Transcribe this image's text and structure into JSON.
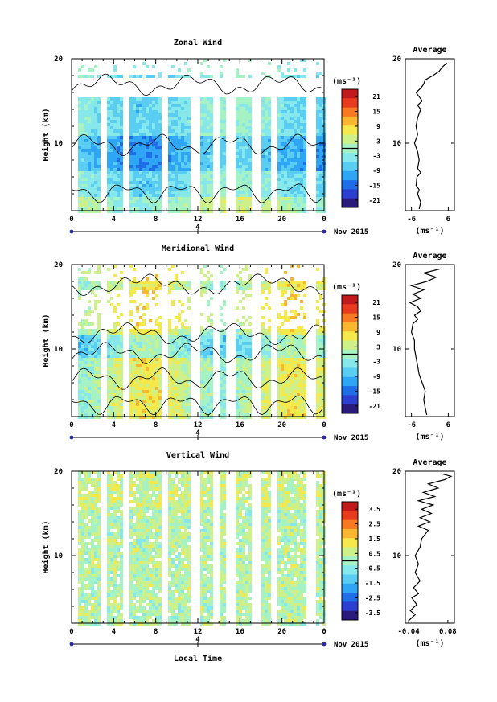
{
  "chart_data": [
    {
      "type": "heatmap",
      "title": "Zonal Wind",
      "ylabel": "Height (km)",
      "ylim": [
        2,
        20
      ],
      "y_ticks": [
        "20",
        "10"
      ],
      "x_ticks": [
        "0",
        "4",
        "8",
        "12",
        "16",
        "20",
        "0"
      ],
      "date_tick": "4",
      "date_label": "Nov 2015",
      "colorbar": {
        "unit": "(ms⁻¹)",
        "tick_labels": [
          "21",
          "15",
          "9",
          "3",
          "-3",
          "-9",
          "-15",
          "-21"
        ],
        "range": [
          -24,
          24
        ]
      },
      "profile": {
        "title": "Average",
        "xlabel": "(ms⁻¹)",
        "x_ticks": [
          "-6",
          "6"
        ],
        "xlim": [
          -8,
          8
        ],
        "y_ticks": [
          "20",
          "10"
        ],
        "points": [
          [
            -3.5,
            2.2
          ],
          [
            -3.0,
            3.0
          ],
          [
            -4.0,
            4.0
          ],
          [
            -3.5,
            4.5
          ],
          [
            -4.5,
            5.0
          ],
          [
            -4.2,
            6.0
          ],
          [
            -3.0,
            6.5
          ],
          [
            -4.0,
            7.0
          ],
          [
            -3.5,
            8.0
          ],
          [
            -4.0,
            9.0
          ],
          [
            -5.0,
            10.0
          ],
          [
            -4.0,
            11.0
          ],
          [
            -4.5,
            12.0
          ],
          [
            -4.0,
            13.0
          ],
          [
            -3.0,
            14.0
          ],
          [
            -4.0,
            14.5
          ],
          [
            -2.5,
            15.0
          ],
          [
            -3.5,
            15.5
          ],
          [
            -4.5,
            16.0
          ],
          [
            -3.0,
            16.5
          ],
          [
            -2.0,
            17.0
          ],
          [
            -1.5,
            17.5
          ],
          [
            1.0,
            18.0
          ],
          [
            3.0,
            18.5
          ],
          [
            4.0,
            19.0
          ],
          [
            5.5,
            19.5
          ]
        ]
      }
    },
    {
      "type": "heatmap",
      "title": "Meridional Wind",
      "ylabel": "Height (km)",
      "ylim": [
        2,
        20
      ],
      "y_ticks": [
        "20",
        "10"
      ],
      "x_ticks": [
        "0",
        "4",
        "8",
        "12",
        "16",
        "20",
        "0"
      ],
      "date_tick": "4",
      "date_label": "Nov 2015",
      "colorbar": {
        "unit": "(ms⁻¹)",
        "tick_labels": [
          "21",
          "15",
          "9",
          "3",
          "-3",
          "-9",
          "-15",
          "-21"
        ],
        "range": [
          -24,
          24
        ]
      },
      "profile": {
        "title": "Average",
        "xlabel": "(ms⁻¹)",
        "x_ticks": [
          "-6",
          "6"
        ],
        "xlim": [
          -8,
          8
        ],
        "y_ticks": [
          "20",
          "10"
        ],
        "points": [
          [
            -1.0,
            2.2
          ],
          [
            -1.5,
            3.0
          ],
          [
            -2.0,
            4.0
          ],
          [
            -1.5,
            5.0
          ],
          [
            -2.5,
            6.0
          ],
          [
            -3.5,
            7.0
          ],
          [
            -4.0,
            8.0
          ],
          [
            -4.5,
            9.0
          ],
          [
            -5.0,
            10.0
          ],
          [
            -5.0,
            11.0
          ],
          [
            -6.0,
            12.0
          ],
          [
            -5.5,
            13.0
          ],
          [
            -4.0,
            13.5
          ],
          [
            -5.0,
            14.0
          ],
          [
            -3.0,
            14.5
          ],
          [
            -4.0,
            15.0
          ],
          [
            -6.5,
            15.5
          ],
          [
            -3.0,
            16.0
          ],
          [
            -5.5,
            16.5
          ],
          [
            -2.0,
            17.0
          ],
          [
            -6.0,
            17.5
          ],
          [
            -1.0,
            18.0
          ],
          [
            2.0,
            18.5
          ],
          [
            -2.0,
            19.0
          ],
          [
            3.5,
            19.5
          ]
        ]
      }
    },
    {
      "type": "heatmap",
      "title": "Vertical Wind",
      "xlabel": "Local Time",
      "ylabel": "Height (km)",
      "ylim": [
        2,
        20
      ],
      "y_ticks": [
        "20",
        "10"
      ],
      "x_ticks": [
        "0",
        "4",
        "8",
        "12",
        "16",
        "20",
        "0"
      ],
      "date_tick": "4",
      "date_label": "Nov 2015",
      "colorbar": {
        "unit": "(ms⁻¹)",
        "tick_labels": [
          "3.5",
          "2.5",
          "1.5",
          "0.5",
          "-0.5",
          "-1.5",
          "-2.5",
          "-3.5"
        ],
        "range": [
          -4,
          4
        ]
      },
      "profile": {
        "title": "Average",
        "xlabel": "(ms⁻¹)",
        "x_ticks": [
          "-0.04",
          "0.08"
        ],
        "xlim": [
          -0.05,
          0.1
        ],
        "y_ticks": [
          "20",
          "10"
        ],
        "points": [
          [
            -0.04,
            2.3
          ],
          [
            -0.02,
            3.0
          ],
          [
            -0.035,
            3.5
          ],
          [
            -0.015,
            4.2
          ],
          [
            -0.03,
            5.0
          ],
          [
            -0.01,
            5.5
          ],
          [
            -0.025,
            6.2
          ],
          [
            -0.005,
            7.0
          ],
          [
            -0.02,
            8.0
          ],
          [
            -0.01,
            9.0
          ],
          [
            -0.02,
            10.0
          ],
          [
            -0.005,
            11.0
          ],
          [
            0.0,
            12.0
          ],
          [
            0.02,
            13.0
          ],
          [
            -0.01,
            13.5
          ],
          [
            0.025,
            14.0
          ],
          [
            -0.005,
            14.5
          ],
          [
            0.03,
            15.0
          ],
          [
            0.0,
            15.5
          ],
          [
            0.035,
            16.0
          ],
          [
            -0.01,
            16.5
          ],
          [
            0.04,
            17.0
          ],
          [
            0.005,
            17.5
          ],
          [
            0.05,
            18.0
          ],
          [
            0.02,
            18.5
          ],
          [
            0.07,
            19.0
          ],
          [
            0.09,
            19.4
          ],
          [
            0.06,
            19.7
          ]
        ]
      }
    }
  ]
}
